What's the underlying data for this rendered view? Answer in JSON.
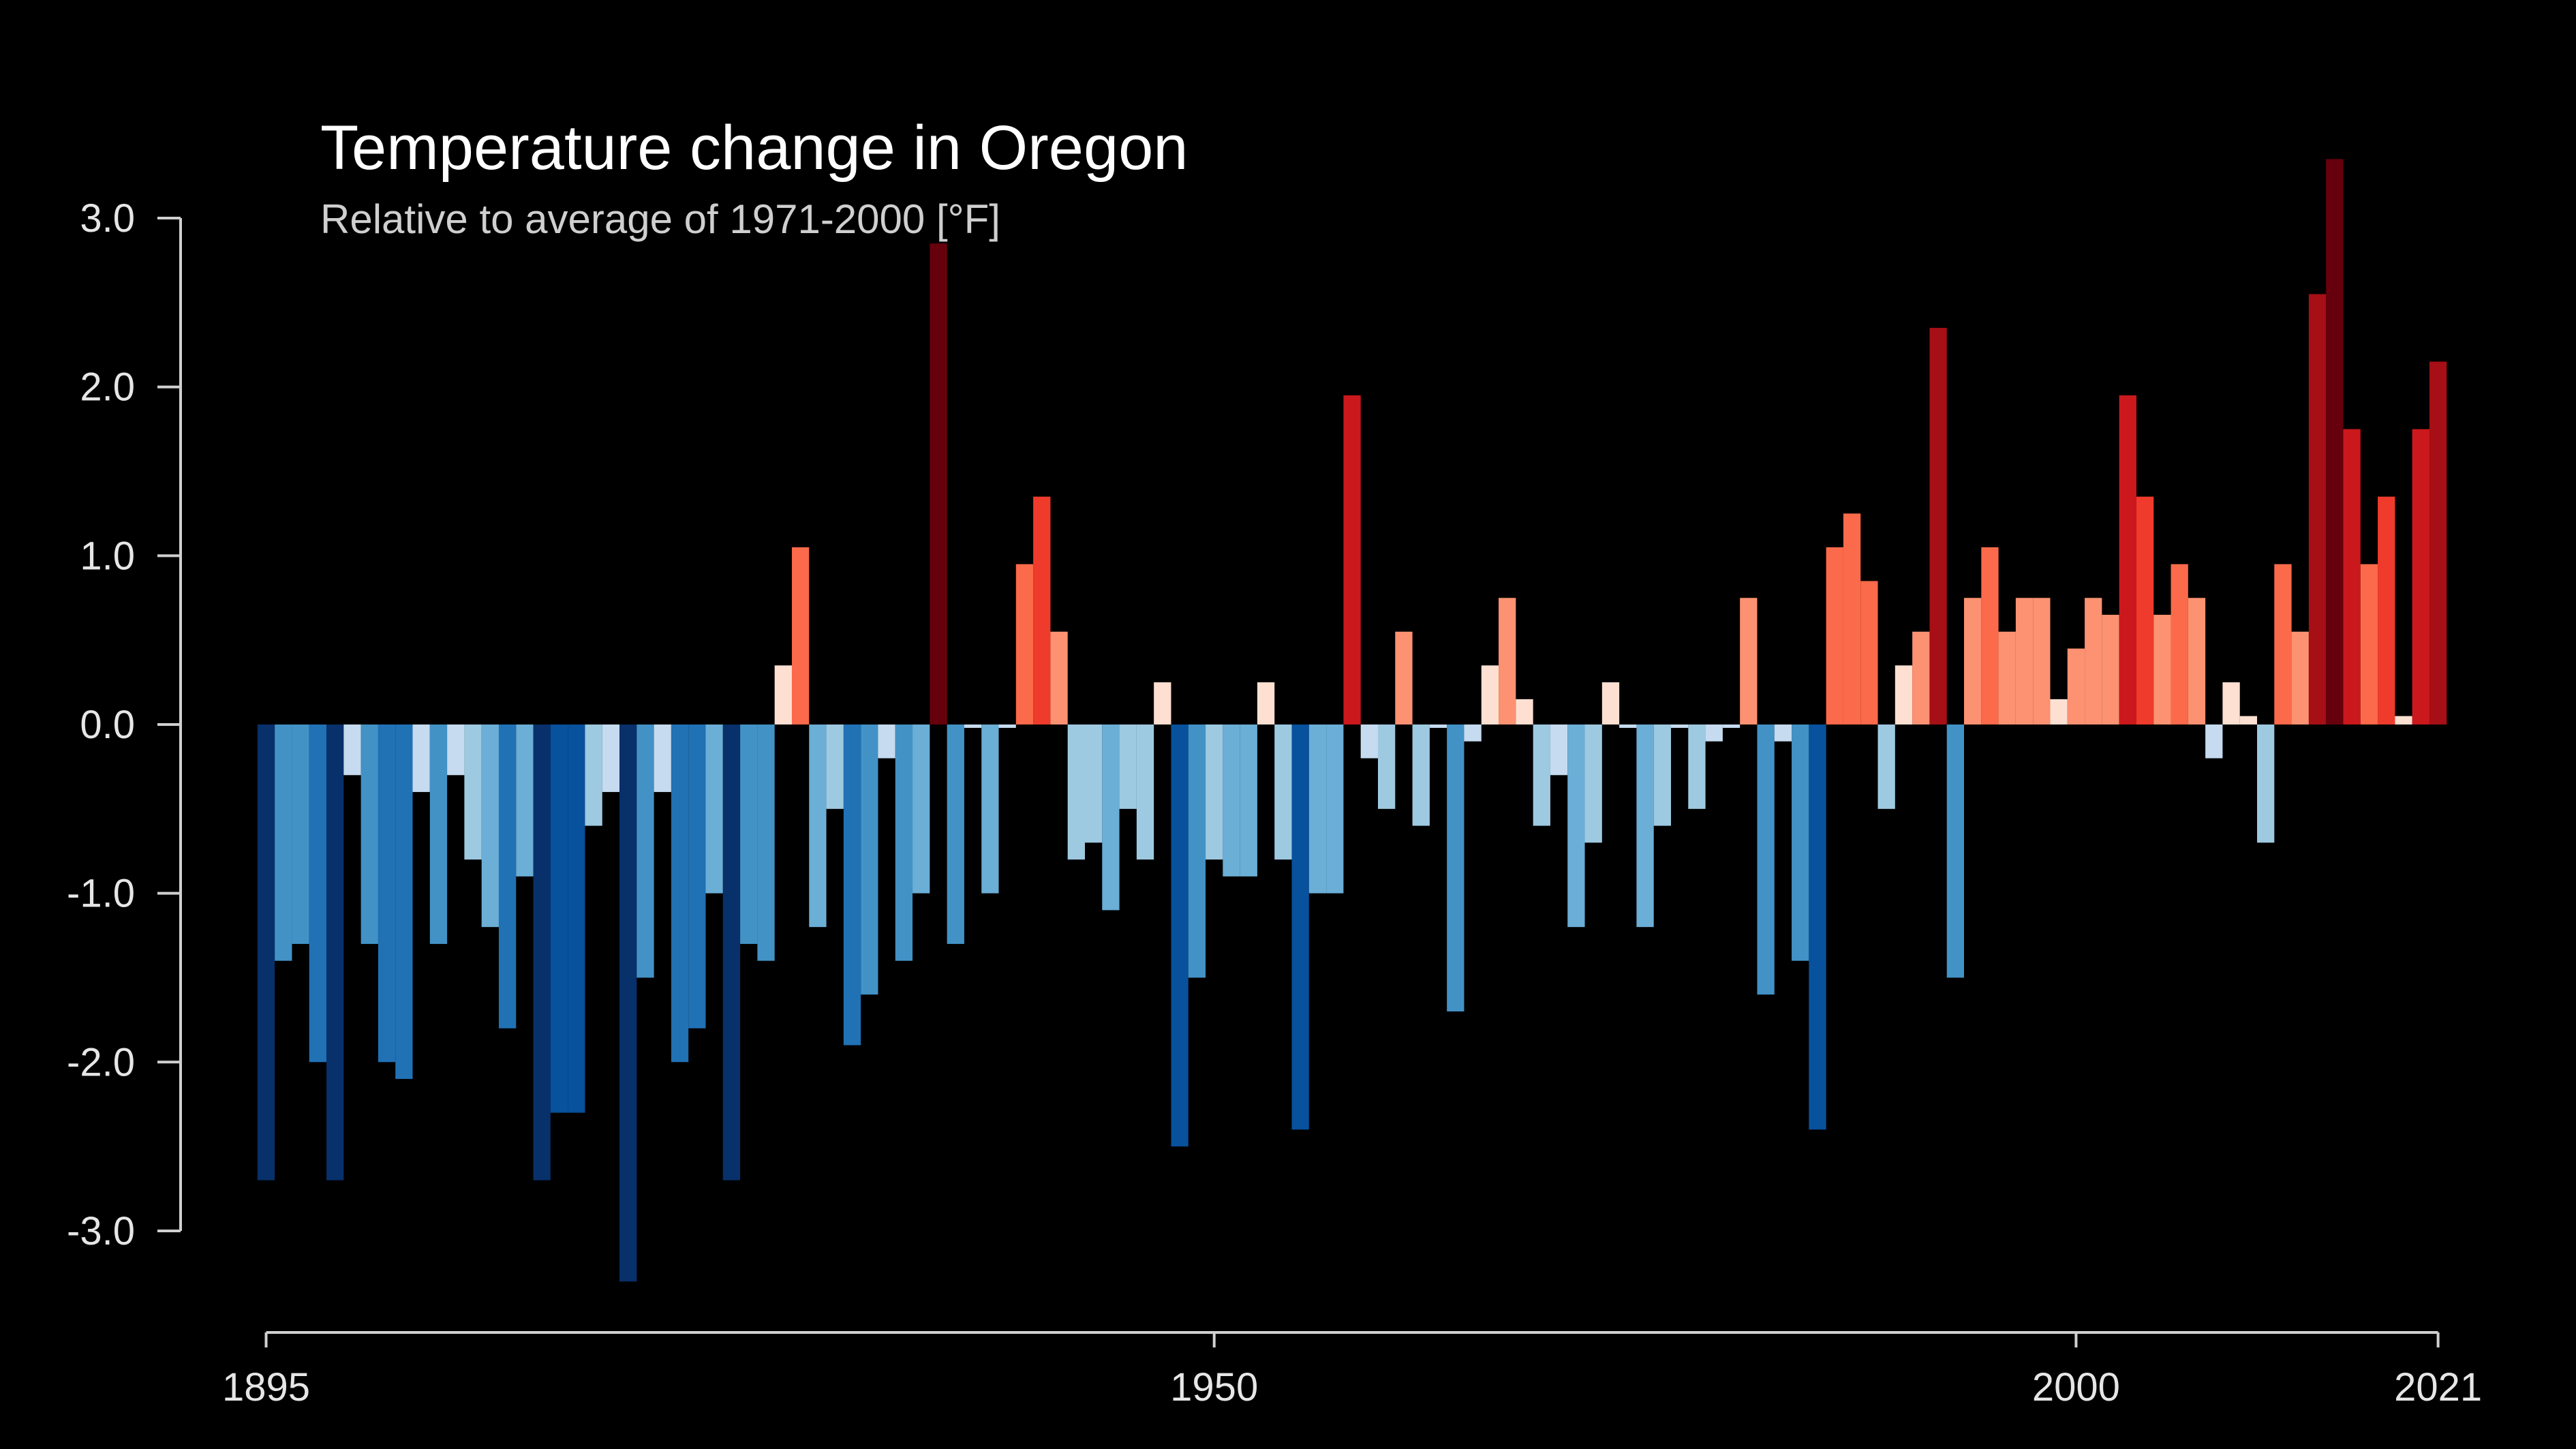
{
  "chart_data": {
    "type": "bar",
    "title": "Temperature change in Oregon",
    "subtitle": "Relative to average of 1971-2000  [°F]",
    "x": [
      1895,
      1896,
      1897,
      1898,
      1899,
      1900,
      1901,
      1902,
      1903,
      1904,
      1905,
      1906,
      1907,
      1908,
      1909,
      1910,
      1911,
      1912,
      1913,
      1914,
      1915,
      1916,
      1917,
      1918,
      1919,
      1920,
      1921,
      1922,
      1923,
      1924,
      1925,
      1926,
      1927,
      1928,
      1929,
      1930,
      1931,
      1932,
      1933,
      1934,
      1935,
      1936,
      1937,
      1938,
      1939,
      1940,
      1941,
      1942,
      1943,
      1944,
      1945,
      1946,
      1947,
      1948,
      1949,
      1950,
      1951,
      1952,
      1953,
      1954,
      1955,
      1956,
      1957,
      1958,
      1959,
      1960,
      1961,
      1962,
      1963,
      1964,
      1965,
      1966,
      1967,
      1968,
      1969,
      1970,
      1971,
      1972,
      1973,
      1974,
      1975,
      1976,
      1977,
      1978,
      1979,
      1980,
      1981,
      1982,
      1983,
      1984,
      1985,
      1986,
      1987,
      1988,
      1989,
      1990,
      1991,
      1992,
      1993,
      1994,
      1995,
      1996,
      1997,
      1998,
      1999,
      2000,
      2001,
      2002,
      2003,
      2004,
      2005,
      2006,
      2007,
      2008,
      2009,
      2010,
      2011,
      2012,
      2013,
      2014,
      2015,
      2016,
      2017,
      2018,
      2019,
      2020,
      2021
    ],
    "values": [
      -2.7,
      -1.4,
      -1.3,
      -2.0,
      -2.7,
      -0.3,
      -1.3,
      -2.0,
      -2.1,
      -0.4,
      -1.3,
      -0.3,
      -0.8,
      -1.2,
      -1.8,
      -0.9,
      -2.7,
      -2.3,
      -2.3,
      -0.6,
      -0.4,
      -3.3,
      -1.5,
      -0.4,
      -2.0,
      -1.8,
      -1.0,
      -2.7,
      -1.3,
      -1.4,
      0.35,
      1.05,
      -1.2,
      -0.5,
      -1.9,
      -1.6,
      -0.2,
      -1.4,
      -1.0,
      2.85,
      -1.3,
      -0.02,
      -1.0,
      -0.02,
      0.95,
      1.35,
      0.55,
      -0.8,
      -0.7,
      -1.1,
      -0.5,
      -0.8,
      0.25,
      -2.5,
      -1.5,
      -0.8,
      -0.9,
      -0.9,
      0.25,
      -0.8,
      -2.4,
      -1.0,
      -1.0,
      1.95,
      -0.2,
      -0.5,
      0.55,
      -0.6,
      -0.02,
      -1.7,
      -0.1,
      0.35,
      0.75,
      0.15,
      -0.6,
      -0.3,
      -1.2,
      -0.7,
      0.25,
      -0.02,
      -1.2,
      -0.6,
      -0.02,
      -0.5,
      -0.1,
      -0.02,
      0.75,
      -1.6,
      -0.1,
      -1.4,
      -2.4,
      1.05,
      1.25,
      0.85,
      -0.5,
      0.35,
      0.55,
      2.35,
      -1.5,
      0.75,
      1.05,
      0.55,
      0.75,
      0.75,
      0.15,
      0.45,
      0.75,
      0.65,
      1.95,
      1.35,
      0.65,
      0.95,
      0.75,
      -0.2,
      0.25,
      0.05,
      -0.7,
      0.95,
      0.55,
      2.55,
      3.35,
      1.75,
      0.95,
      1.35,
      0.05,
      1.75,
      2.15
    ],
    "palette": [
      "#08306b",
      "#08306b",
      "#08519c",
      "#2171b5",
      "#4292c6",
      "#6baed6",
      "#9ecae1",
      "#c6dbef",
      "#fee0d2",
      "#fc9272",
      "#fb6a4a",
      "#ef3b2c",
      "#cb181d",
      "#a50f15",
      "#67000d",
      "#67000d"
    ],
    "xlim": [
      1895,
      2021
    ],
    "xticks": [
      1895,
      1950,
      2000,
      2021
    ],
    "ylim": [
      -3.4,
      3.4
    ],
    "yticks": [
      {
        "value": -3,
        "label": "-3.0"
      },
      {
        "value": -2,
        "label": "-2.0"
      },
      {
        "value": -1,
        "label": "-1.0"
      },
      {
        "value": 0,
        "label": "0.0"
      },
      {
        "value": 1,
        "label": "1.0"
      },
      {
        "value": 2,
        "label": "2.0"
      },
      {
        "value": 3,
        "label": "3.0"
      }
    ]
  }
}
